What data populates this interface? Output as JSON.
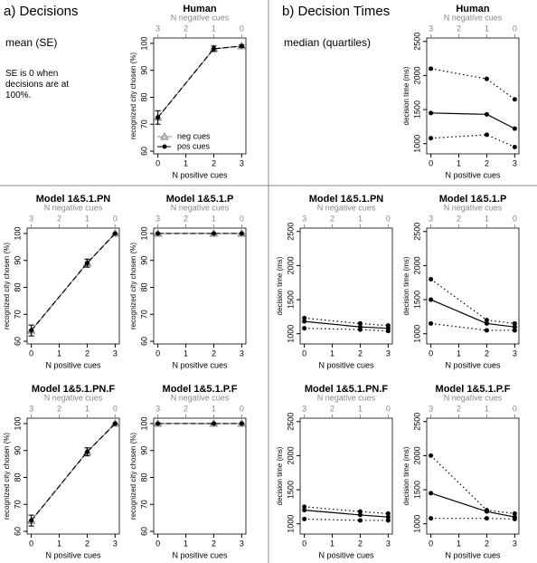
{
  "panel_a": {
    "label": "a) Decisions",
    "subtitle": "mean (SE)",
    "note": "SE is 0 when decisions are at 100%."
  },
  "panel_b": {
    "label": "b) Decision Times",
    "subtitle": "median (quartiles)"
  },
  "chart_data": [
    {
      "type": "line",
      "title": "Human",
      "xlabel": "N positive cues",
      "x2label": "N negative cues",
      "ylabel": "recognized city chosen (%)",
      "x": [
        0,
        2,
        3
      ],
      "xlim": [
        -0.15,
        3.15
      ],
      "xticks": [
        0,
        1,
        2,
        3
      ],
      "x2lim": [
        3.15,
        -0.15
      ],
      "x2ticks": [
        3,
        2,
        1,
        0
      ],
      "ylim": [
        59,
        102
      ],
      "yticks": [
        60,
        70,
        80,
        90,
        100
      ],
      "legend": "lower left",
      "series": [
        {
          "name": "neg cues",
          "color": "#888888",
          "dash": "solid",
          "marker": "triangle",
          "values": [
            72.5,
            98,
            99
          ],
          "errors": [
            2.5,
            1,
            0.5
          ]
        },
        {
          "name": "pos cues",
          "color": "#000000",
          "dash": "dashed",
          "marker": "circle",
          "values": [
            72.5,
            98,
            99
          ],
          "errors": [
            2.5,
            1,
            0.5
          ]
        }
      ]
    },
    {
      "type": "line",
      "title": "Model 1&5.1.PN",
      "xlabel": "N positive cues",
      "x2label": "N negative cues",
      "ylabel": "recognized city chosen (%)",
      "x": [
        0,
        2,
        3
      ],
      "xlim": [
        -0.15,
        3.15
      ],
      "xticks": [
        0,
        1,
        2,
        3
      ],
      "x2lim": [
        3.15,
        -0.15
      ],
      "x2ticks": [
        3,
        2,
        1,
        0
      ],
      "ylim": [
        59,
        102
      ],
      "yticks": [
        60,
        70,
        80,
        90,
        100
      ],
      "series": [
        {
          "color": "#888888",
          "dash": "solid",
          "marker": "triangle",
          "values": [
            64,
            89,
            100
          ],
          "errors": [
            2,
            1.5,
            0
          ]
        },
        {
          "color": "#000000",
          "dash": "dashed",
          "marker": "circle",
          "values": [
            64,
            89,
            100
          ],
          "errors": [
            2,
            1.5,
            0
          ]
        }
      ]
    },
    {
      "type": "line",
      "title": "Model 1&5.1.P",
      "xlabel": "N positive cues",
      "x2label": "N negative cues",
      "ylabel": "recognized city chosen (%)",
      "x": [
        0,
        2,
        3
      ],
      "xlim": [
        -0.15,
        3.15
      ],
      "xticks": [
        0,
        1,
        2,
        3
      ],
      "x2lim": [
        3.15,
        -0.15
      ],
      "x2ticks": [
        3,
        2,
        1,
        0
      ],
      "ylim": [
        59,
        102
      ],
      "yticks": [
        60,
        70,
        80,
        90,
        100
      ],
      "series": [
        {
          "color": "#888888",
          "dash": "solid",
          "marker": "triangle",
          "values": [
            100,
            100,
            100
          ],
          "errors": [
            0,
            0,
            0
          ]
        },
        {
          "color": "#000000",
          "dash": "dashed",
          "marker": "circle",
          "values": [
            100,
            100,
            100
          ],
          "errors": [
            0,
            0,
            0
          ]
        }
      ]
    },
    {
      "type": "line",
      "title": "Model 1&5.1.PN.F",
      "xlabel": "N positive cues",
      "x2label": "N negative cues",
      "ylabel": "recognized city chosen (%)",
      "x": [
        0,
        2,
        3
      ],
      "xlim": [
        -0.15,
        3.15
      ],
      "xticks": [
        0,
        1,
        2,
        3
      ],
      "x2lim": [
        3.15,
        -0.15
      ],
      "x2ticks": [
        3,
        2,
        1,
        0
      ],
      "ylim": [
        59,
        102
      ],
      "yticks": [
        60,
        70,
        80,
        90,
        100
      ],
      "series": [
        {
          "color": "#888888",
          "dash": "solid",
          "marker": "triangle",
          "values": [
            64,
            89.5,
            100
          ],
          "errors": [
            2,
            1.5,
            0
          ]
        },
        {
          "color": "#000000",
          "dash": "dashed",
          "marker": "circle",
          "values": [
            64,
            89.5,
            100
          ],
          "errors": [
            2,
            1.5,
            0
          ]
        }
      ]
    },
    {
      "type": "line",
      "title": "Model 1&5.1.P.F",
      "xlabel": "N positive cues",
      "x2label": "N negative cues",
      "ylabel": "recognized city chosen (%)",
      "x": [
        0,
        2,
        3
      ],
      "xlim": [
        -0.15,
        3.15
      ],
      "xticks": [
        0,
        1,
        2,
        3
      ],
      "x2lim": [
        3.15,
        -0.15
      ],
      "x2ticks": [
        3,
        2,
        1,
        0
      ],
      "ylim": [
        59,
        102
      ],
      "yticks": [
        60,
        70,
        80,
        90,
        100
      ],
      "series": [
        {
          "color": "#888888",
          "dash": "solid",
          "marker": "triangle",
          "values": [
            100,
            100,
            100
          ],
          "errors": [
            0,
            0,
            0
          ]
        },
        {
          "color": "#000000",
          "dash": "dashed",
          "marker": "circle",
          "values": [
            100,
            100,
            100
          ],
          "errors": [
            0,
            0,
            0
          ]
        }
      ]
    },
    {
      "type": "line",
      "title": "Human",
      "xlabel": "N positive cues",
      "x2label": "N negative cues",
      "ylabel": "decision time (ms)",
      "x": [
        0,
        2,
        3
      ],
      "xlim": [
        -0.15,
        3.15
      ],
      "xticks": [
        0,
        1,
        2,
        3
      ],
      "x2lim": [
        3.15,
        -0.15
      ],
      "x2ticks": [
        3,
        2,
        1,
        0
      ],
      "ylim": [
        850,
        2550
      ],
      "yticks": [
        1000,
        1500,
        2000,
        2500
      ],
      "series": [
        {
          "color": "#000000",
          "dash": "dotted",
          "marker": "circle",
          "values": [
            2100,
            1950,
            1650
          ]
        },
        {
          "color": "#000000",
          "dash": "solid",
          "marker": "circle",
          "values": [
            1450,
            1430,
            1220
          ]
        },
        {
          "color": "#000000",
          "dash": "dotted",
          "marker": "circle",
          "values": [
            1080,
            1130,
            950
          ]
        }
      ]
    },
    {
      "type": "line",
      "title": "Model 1&5.1.PN",
      "xlabel": "N positive cues",
      "x2label": "N negative cues",
      "ylabel": "decision time (ms)",
      "x": [
        0,
        2,
        3
      ],
      "xlim": [
        -0.15,
        3.15
      ],
      "xticks": [
        0,
        1,
        2,
        3
      ],
      "x2lim": [
        3.15,
        -0.15
      ],
      "x2ticks": [
        3,
        2,
        1,
        0
      ],
      "ylim": [
        850,
        2550
      ],
      "yticks": [
        1000,
        1500,
        2000,
        2500
      ],
      "series": [
        {
          "color": "#000000",
          "dash": "dotted",
          "marker": "circle",
          "values": [
            1230,
            1150,
            1120
          ]
        },
        {
          "color": "#000000",
          "dash": "solid",
          "marker": "circle",
          "values": [
            1180,
            1100,
            1080
          ]
        },
        {
          "color": "#000000",
          "dash": "dotted",
          "marker": "circle",
          "values": [
            1080,
            1060,
            1040
          ]
        }
      ]
    },
    {
      "type": "line",
      "title": "Model 1&5.1.P",
      "xlabel": "N positive cues",
      "x2label": "N negative cues",
      "ylabel": "decision time (ms)",
      "x": [
        0,
        2,
        3
      ],
      "xlim": [
        -0.15,
        3.15
      ],
      "xticks": [
        0,
        1,
        2,
        3
      ],
      "x2lim": [
        3.15,
        -0.15
      ],
      "x2ticks": [
        3,
        2,
        1,
        0
      ],
      "ylim": [
        850,
        2550
      ],
      "yticks": [
        1000,
        1500,
        2000,
        2500
      ],
      "series": [
        {
          "color": "#000000",
          "dash": "dotted",
          "marker": "circle",
          "values": [
            1800,
            1200,
            1150
          ]
        },
        {
          "color": "#000000",
          "dash": "solid",
          "marker": "circle",
          "values": [
            1500,
            1150,
            1100
          ]
        },
        {
          "color": "#000000",
          "dash": "dotted",
          "marker": "circle",
          "values": [
            1150,
            1050,
            1050
          ]
        }
      ]
    },
    {
      "type": "line",
      "title": "Model 1&5.1.PN.F",
      "xlabel": "N positive cues",
      "x2label": "N negative cues",
      "ylabel": "decision time (ms)",
      "x": [
        0,
        2,
        3
      ],
      "xlim": [
        -0.15,
        3.15
      ],
      "xticks": [
        0,
        1,
        2,
        3
      ],
      "x2lim": [
        3.15,
        -0.15
      ],
      "x2ticks": [
        3,
        2,
        1,
        0
      ],
      "ylim": [
        850,
        2550
      ],
      "yticks": [
        1000,
        1500,
        2000,
        2500
      ],
      "series": [
        {
          "color": "#000000",
          "dash": "dotted",
          "marker": "circle",
          "values": [
            1250,
            1180,
            1150
          ]
        },
        {
          "color": "#000000",
          "dash": "solid",
          "marker": "circle",
          "values": [
            1200,
            1130,
            1100
          ]
        },
        {
          "color": "#000000",
          "dash": "dotted",
          "marker": "circle",
          "values": [
            1070,
            1050,
            1050
          ]
        }
      ]
    },
    {
      "type": "line",
      "title": "Model 1&5.1.P.F",
      "xlabel": "N positive cues",
      "x2label": "N negative cues",
      "ylabel": "decision time (ms)",
      "x": [
        0,
        2,
        3
      ],
      "xlim": [
        -0.15,
        3.15
      ],
      "xticks": [
        0,
        1,
        2,
        3
      ],
      "x2lim": [
        3.15,
        -0.15
      ],
      "x2ticks": [
        3,
        2,
        1,
        0
      ],
      "ylim": [
        850,
        2550
      ],
      "yticks": [
        1000,
        1500,
        2000,
        2500
      ],
      "series": [
        {
          "color": "#000000",
          "dash": "dotted",
          "marker": "circle",
          "values": [
            2000,
            1200,
            1150
          ]
        },
        {
          "color": "#000000",
          "dash": "solid",
          "marker": "circle",
          "values": [
            1450,
            1180,
            1100
          ]
        },
        {
          "color": "#000000",
          "dash": "dotted",
          "marker": "circle",
          "values": [
            1080,
            1080,
            1070
          ]
        }
      ]
    }
  ]
}
